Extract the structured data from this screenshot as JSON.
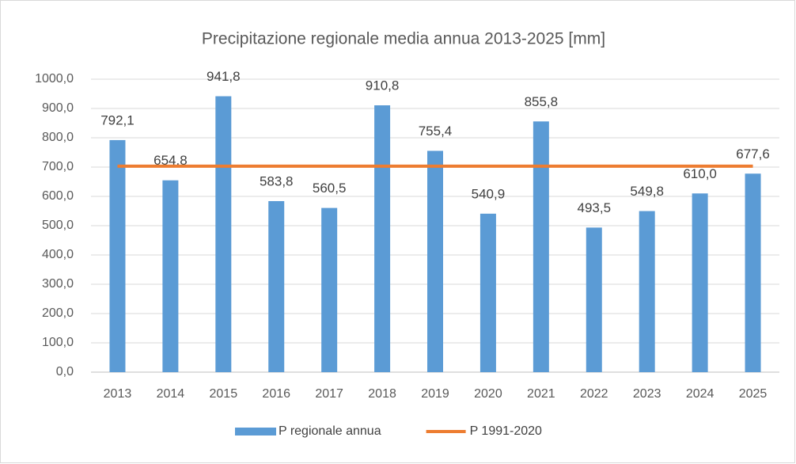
{
  "chart_data": {
    "type": "bar",
    "title": "Precipitazione regionale media annua 2013-2025 [mm]",
    "categories": [
      "2013",
      "2014",
      "2015",
      "2016",
      "2017",
      "2018",
      "2019",
      "2020",
      "2021",
      "2022",
      "2023",
      "2024",
      "2025"
    ],
    "series": [
      {
        "name": "P regionale annua",
        "type": "bar",
        "color": "#5b9bd5",
        "values": [
          792.1,
          654.8,
          941.8,
          583.8,
          560.5,
          910.8,
          755.4,
          540.9,
          855.8,
          493.5,
          549.8,
          610.0,
          677.6
        ],
        "value_labels": [
          "792,1",
          "654,8",
          "941,8",
          "583,8",
          "560,5",
          "910,8",
          "755,4",
          "540,9",
          "855,8",
          "493,5",
          "549,8",
          "610,0",
          "677,6"
        ]
      },
      {
        "name": "P 1991-2020",
        "type": "line",
        "color": "#ed7d31",
        "values": [
          703,
          703,
          703,
          703,
          703,
          703,
          703,
          703,
          703,
          703,
          703,
          703,
          703
        ]
      }
    ],
    "ylim": [
      0,
      1000
    ],
    "yticks": [
      {
        "value": 0,
        "label": "0,0"
      },
      {
        "value": 100,
        "label": "100,0"
      },
      {
        "value": 200,
        "label": "200,0"
      },
      {
        "value": 300,
        "label": "300,0"
      },
      {
        "value": 400,
        "label": "400,0"
      },
      {
        "value": 500,
        "label": "500,0"
      },
      {
        "value": 600,
        "label": "600,0"
      },
      {
        "value": 700,
        "label": "700,0"
      },
      {
        "value": 800,
        "label": "800,0"
      },
      {
        "value": 900,
        "label": "900,0"
      },
      {
        "value": 1000,
        "label": "1000,0"
      }
    ],
    "grid": true,
    "legend": "bottom"
  }
}
